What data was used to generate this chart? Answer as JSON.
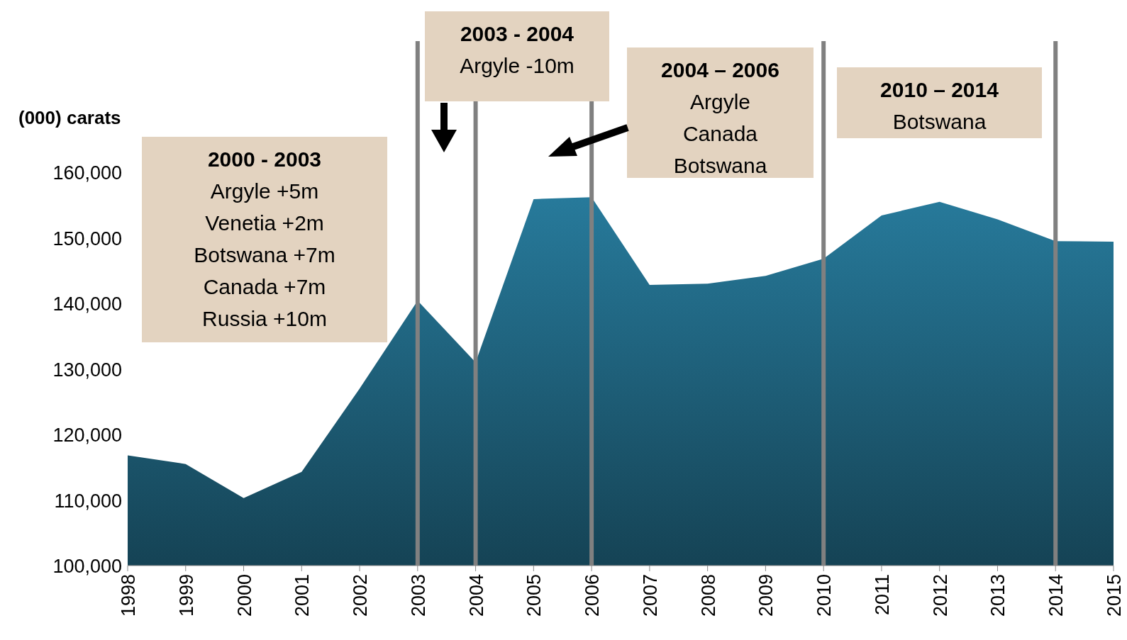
{
  "chart_data": {
    "type": "area",
    "ylabel": "(000) carats",
    "x": [
      1998,
      1999,
      2000,
      2001,
      2002,
      2003,
      2004,
      2005,
      2006,
      2007,
      2008,
      2009,
      2010,
      2011,
      2012,
      2013,
      2014,
      2015
    ],
    "series": [
      {
        "color": "#277a9b",
        "values": [
          116800,
          115500,
          110300,
          114300,
          127000,
          140400,
          131000,
          155900,
          156200,
          142800,
          143000,
          144200,
          146800,
          153400,
          155500,
          152800,
          149500,
          149400
        ]
      }
    ],
    "xlim": [
      1998,
      2015
    ],
    "xticks": [
      1998,
      1999,
      2000,
      2001,
      2002,
      2003,
      2004,
      2005,
      2006,
      2007,
      2008,
      2009,
      2010,
      2011,
      2012,
      2013,
      2014,
      2015
    ],
    "ylim": [
      100000,
      180000
    ],
    "yticks": [
      {
        "value": 100000,
        "label": "100,000"
      },
      {
        "value": 110000,
        "label": "110,000"
      },
      {
        "value": 120000,
        "label": "120,000"
      },
      {
        "value": 130000,
        "label": "130,000"
      },
      {
        "value": 140000,
        "label": "140,000"
      },
      {
        "value": 150000,
        "label": "150,000"
      },
      {
        "value": 160000,
        "label": "160,000"
      }
    ],
    "ref_lines": [
      {
        "axis": "x",
        "value": 2003,
        "color": "#808080"
      },
      {
        "axis": "x",
        "value": 2004,
        "color": "#808080"
      },
      {
        "axis": "x",
        "value": 2006,
        "color": "#808080"
      },
      {
        "axis": "x",
        "value": 2010,
        "color": "#808080"
      },
      {
        "axis": "x",
        "value": 2014,
        "color": "#808080"
      }
    ],
    "annotations": [
      "2000 - 2003\nArgyle +5m\nVenetia +2m\nBotswana +7m\nCanada +7m\nRussia +10m",
      "2003 - 2004\nArgyle -10m",
      "2004 – 2006\nArgyle\nCanada\nBotswana",
      "2010 – 2014\nBotswana"
    ],
    "grid": false
  }
}
